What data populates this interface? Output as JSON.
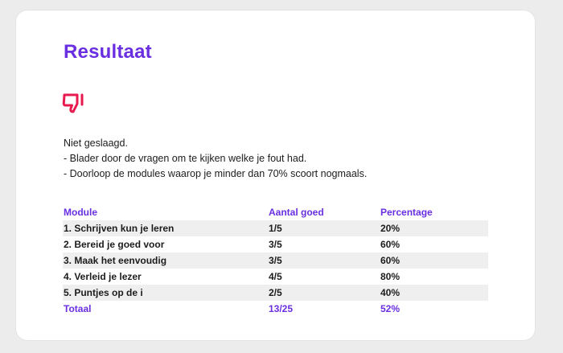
{
  "title": "Resultaat",
  "result_icon": "thumbs-down-icon",
  "colors": {
    "accent": "#6a2fe0",
    "icon": "#e8194f"
  },
  "message": {
    "status": "Niet geslaagd.",
    "tips": [
      "- Blader door de vragen om te kijken welke je fout had.",
      "- Doorloop de modules waarop je minder dan 70% scoort nogmaals."
    ]
  },
  "table": {
    "headers": {
      "module": "Module",
      "correct": "Aantal goed",
      "percentage": "Percentage"
    },
    "rows": [
      {
        "module": "1. Schrijven kun je leren",
        "correct": "1/5",
        "percentage": "20%"
      },
      {
        "module": "2. Bereid je goed voor",
        "correct": "3/5",
        "percentage": "60%"
      },
      {
        "module": "3. Maak het eenvoudig",
        "correct": "3/5",
        "percentage": "60%"
      },
      {
        "module": "4. Verleid je lezer",
        "correct": "4/5",
        "percentage": "80%"
      },
      {
        "module": "5. Puntjes op de i",
        "correct": "2/5",
        "percentage": "40%"
      }
    ],
    "total": {
      "module": "Totaal",
      "correct": "13/25",
      "percentage": "52%"
    }
  }
}
